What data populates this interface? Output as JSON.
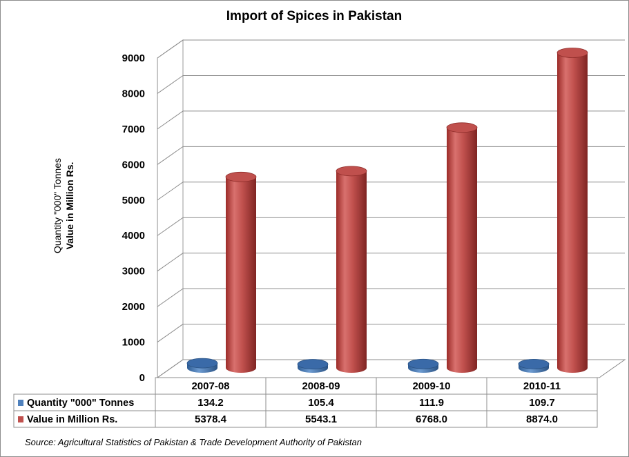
{
  "chart_data": {
    "type": "bar",
    "title": "Import of Spices in Pakistan",
    "ylabel_line1": "Quantity \"000\" Tonnes",
    "ylabel_line2": "Value in Million Rs.",
    "categories": [
      "2007-08",
      "2008-09",
      "2009-10",
      "2010-11"
    ],
    "series": [
      {
        "name": "Quantity \"000\" Tonnes",
        "values": [
          134.2,
          105.4,
          111.9,
          109.7
        ],
        "labels": [
          "134.2",
          "105.4",
          "111.9",
          "109.7"
        ],
        "color": "#4f81bd"
      },
      {
        "name": "Value in Million Rs.",
        "values": [
          5378.4,
          5543.1,
          6768.0,
          8874.0
        ],
        "labels": [
          "5378.4",
          "5543.1",
          "6768.0",
          "8874.0"
        ],
        "color": "#c0504d"
      }
    ],
    "ylim": [
      0,
      9000
    ],
    "yticks": [
      0,
      1000,
      2000,
      3000,
      4000,
      5000,
      6000,
      7000,
      8000,
      9000
    ],
    "grid": true,
    "legend": "data-table"
  },
  "source_note": "Source: Agricultural Statistics of Pakistan & Trade Development Authority of Pakistan"
}
